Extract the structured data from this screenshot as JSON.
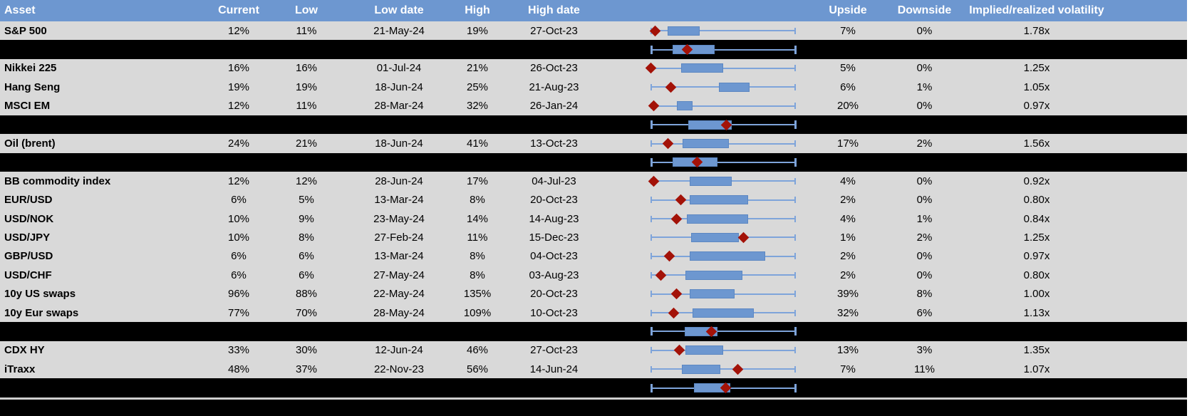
{
  "colors": {
    "header_bg": "#6D97D0",
    "header_text": "#FFFFFF",
    "row_bg": "#D9D9D9",
    "separator_bg": "#000000",
    "text": "#000000",
    "box_fill": "#6D97D0",
    "box_border": "#5C87C2",
    "whisker": "#7EA4DA",
    "marker": "#A31208",
    "divider": "#CFCFCF"
  },
  "chart_data": {
    "type": "table",
    "note": "Volatility table; each row embeds a horizontal box plot normalized 0-1 across the low-high range: whiskers, middle-range box, and a dark-red diamond marking the current level. Black separator rows show aggregate box plots only.",
    "columns": [
      "Asset",
      "Current",
      "Low",
      "Low date",
      "High",
      "High date",
      "",
      "Upside",
      "Downside",
      "Implied/realized volatility"
    ],
    "rows": [
      {
        "kind": "data",
        "cells": {
          "asset": "S&P 500",
          "current": "12%",
          "low": "11%",
          "low_date": "21-May-24",
          "high": "19%",
          "high_date": "27-Oct-23",
          "upside": "7%",
          "downside": "0%",
          "implied_realized": "1.78x"
        },
        "boxplot": {
          "whisker_lo": 0,
          "box_lo": 0.12,
          "box_hi": 0.34,
          "whisker_hi": 1,
          "marker": 0.03
        }
      },
      {
        "kind": "separator",
        "boxplot": {
          "whisker_lo": 0,
          "box_lo": 0.15,
          "box_hi": 0.44,
          "whisker_hi": 1,
          "marker": 0.25
        }
      },
      {
        "kind": "data",
        "cells": {
          "asset": "Nikkei 225",
          "current": "16%",
          "low": "16%",
          "low_date": "01-Jul-24",
          "high": "21%",
          "high_date": "26-Oct-23",
          "upside": "5%",
          "downside": "0%",
          "implied_realized": "1.25x"
        },
        "boxplot": {
          "whisker_lo": 0,
          "box_lo": 0.21,
          "box_hi": 0.5,
          "whisker_hi": 1,
          "marker": 0.0
        }
      },
      {
        "kind": "data",
        "cells": {
          "asset": "Hang Seng",
          "current": "19%",
          "low": "19%",
          "low_date": "18-Jun-24",
          "high": "25%",
          "high_date": "21-Aug-23",
          "upside": "6%",
          "downside": "1%",
          "implied_realized": "1.05x"
        },
        "boxplot": {
          "whisker_lo": 0,
          "box_lo": 0.47,
          "box_hi": 0.68,
          "whisker_hi": 1,
          "marker": 0.14
        }
      },
      {
        "kind": "data",
        "cells": {
          "asset": "MSCI EM",
          "current": "12%",
          "low": "11%",
          "low_date": "28-Mar-24",
          "high": "32%",
          "high_date": "26-Jan-24",
          "upside": "20%",
          "downside": "0%",
          "implied_realized": "0.97x"
        },
        "boxplot": {
          "whisker_lo": 0,
          "box_lo": 0.18,
          "box_hi": 0.29,
          "whisker_hi": 1,
          "marker": 0.02
        }
      },
      {
        "kind": "separator",
        "boxplot": {
          "whisker_lo": 0,
          "box_lo": 0.26,
          "box_hi": 0.56,
          "whisker_hi": 1,
          "marker": 0.52
        }
      },
      {
        "kind": "data",
        "cells": {
          "asset": "Oil (brent)",
          "current": "24%",
          "low": "21%",
          "low_date": "18-Jun-24",
          "high": "41%",
          "high_date": "13-Oct-23",
          "upside": "17%",
          "downside": "2%",
          "implied_realized": "1.56x"
        },
        "boxplot": {
          "whisker_lo": 0,
          "box_lo": 0.22,
          "box_hi": 0.54,
          "whisker_hi": 1,
          "marker": 0.12
        }
      },
      {
        "kind": "separator",
        "boxplot": {
          "whisker_lo": 0,
          "box_lo": 0.15,
          "box_hi": 0.46,
          "whisker_hi": 1,
          "marker": 0.32
        }
      },
      {
        "kind": "data",
        "cells": {
          "asset": "BB commodity index",
          "current": "12%",
          "low": "12%",
          "low_date": "28-Jun-24",
          "high": "17%",
          "high_date": "04-Jul-23",
          "upside": "4%",
          "downside": "0%",
          "implied_realized": "0.92x"
        },
        "boxplot": {
          "whisker_lo": 0,
          "box_lo": 0.27,
          "box_hi": 0.56,
          "whisker_hi": 1,
          "marker": 0.02
        }
      },
      {
        "kind": "data",
        "cells": {
          "asset": "EUR/USD",
          "current": "6%",
          "low": "5%",
          "low_date": "13-Mar-24",
          "high": "8%",
          "high_date": "20-Oct-23",
          "upside": "2%",
          "downside": "0%",
          "implied_realized": "0.80x"
        },
        "boxplot": {
          "whisker_lo": 0,
          "box_lo": 0.27,
          "box_hi": 0.67,
          "whisker_hi": 1,
          "marker": 0.21
        }
      },
      {
        "kind": "data",
        "cells": {
          "asset": "USD/NOK",
          "current": "10%",
          "low": "9%",
          "low_date": "23-May-24",
          "high": "14%",
          "high_date": "14-Aug-23",
          "upside": "4%",
          "downside": "1%",
          "implied_realized": "0.84x"
        },
        "boxplot": {
          "whisker_lo": 0,
          "box_lo": 0.25,
          "box_hi": 0.67,
          "whisker_hi": 1,
          "marker": 0.18
        }
      },
      {
        "kind": "data",
        "cells": {
          "asset": "USD/JPY",
          "current": "10%",
          "low": "8%",
          "low_date": "27-Feb-24",
          "high": "11%",
          "high_date": "15-Dec-23",
          "upside": "1%",
          "downside": "2%",
          "implied_realized": "1.25x"
        },
        "boxplot": {
          "whisker_lo": 0,
          "box_lo": 0.28,
          "box_hi": 0.61,
          "whisker_hi": 1,
          "marker": 0.64
        }
      },
      {
        "kind": "data",
        "cells": {
          "asset": "GBP/USD",
          "current": "6%",
          "low": "6%",
          "low_date": "13-Mar-24",
          "high": "8%",
          "high_date": "04-Oct-23",
          "upside": "2%",
          "downside": "0%",
          "implied_realized": "0.97x"
        },
        "boxplot": {
          "whisker_lo": 0,
          "box_lo": 0.27,
          "box_hi": 0.79,
          "whisker_hi": 1,
          "marker": 0.13
        }
      },
      {
        "kind": "data",
        "cells": {
          "asset": "USD/CHF",
          "current": "6%",
          "low": "6%",
          "low_date": "27-May-24",
          "high": "8%",
          "high_date": "03-Aug-23",
          "upside": "2%",
          "downside": "0%",
          "implied_realized": "0.80x"
        },
        "boxplot": {
          "whisker_lo": 0,
          "box_lo": 0.24,
          "box_hi": 0.63,
          "whisker_hi": 1,
          "marker": 0.07
        }
      },
      {
        "kind": "data",
        "cells": {
          "asset": "10y US swaps",
          "current": "96%",
          "low": "88%",
          "low_date": "22-May-24",
          "high": "135%",
          "high_date": "20-Oct-23",
          "upside": "39%",
          "downside": "8%",
          "implied_realized": "1.00x"
        },
        "boxplot": {
          "whisker_lo": 0,
          "box_lo": 0.27,
          "box_hi": 0.58,
          "whisker_hi": 1,
          "marker": 0.18
        }
      },
      {
        "kind": "data",
        "cells": {
          "asset": "10y Eur swaps",
          "current": "77%",
          "low": "70%",
          "low_date": "28-May-24",
          "high": "109%",
          "high_date": "10-Oct-23",
          "upside": "32%",
          "downside": "6%",
          "implied_realized": "1.13x"
        },
        "boxplot": {
          "whisker_lo": 0,
          "box_lo": 0.29,
          "box_hi": 0.71,
          "whisker_hi": 1,
          "marker": 0.16
        }
      },
      {
        "kind": "separator",
        "boxplot": {
          "whisker_lo": 0,
          "box_lo": 0.235,
          "box_hi": 0.46,
          "whisker_hi": 1,
          "marker": 0.42
        }
      },
      {
        "kind": "data",
        "cells": {
          "asset": "CDX HY",
          "current": "33%",
          "low": "30%",
          "low_date": "12-Jun-24",
          "high": "46%",
          "high_date": "27-Oct-23",
          "upside": "13%",
          "downside": "3%",
          "implied_realized": "1.35x"
        },
        "boxplot": {
          "whisker_lo": 0,
          "box_lo": 0.24,
          "box_hi": 0.5,
          "whisker_hi": 1,
          "marker": 0.2
        }
      },
      {
        "kind": "data",
        "cells": {
          "asset": "iTraxx",
          "current": "48%",
          "low": "37%",
          "low_date": "22-Nov-23",
          "high": "56%",
          "high_date": "14-Jun-24",
          "upside": "7%",
          "downside": "11%",
          "implied_realized": "1.07x"
        },
        "boxplot": {
          "whisker_lo": 0,
          "box_lo": 0.215,
          "box_hi": 0.48,
          "whisker_hi": 1,
          "marker": 0.6
        }
      },
      {
        "kind": "separator",
        "boxplot": {
          "whisker_lo": 0,
          "box_lo": 0.3,
          "box_hi": 0.55,
          "whisker_hi": 1,
          "marker": 0.515
        }
      },
      {
        "kind": "footer"
      }
    ]
  }
}
